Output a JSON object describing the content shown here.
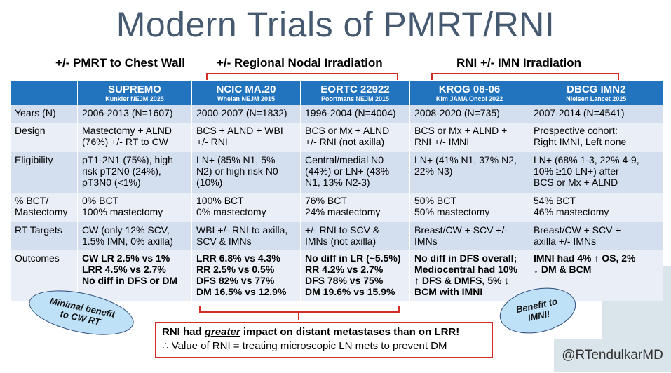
{
  "title": "Modern Trials of PMRT/RNI",
  "groups": {
    "pmrt": "+/- PMRT to Chest Wall",
    "rni": "+/- Regional Nodal Irradiation",
    "imn": "RNI +/- IMN Irradiation"
  },
  "trials": [
    {
      "name": "SUPREMO",
      "source": "Kunkler NEJM 2025"
    },
    {
      "name": "NCIC MA.20",
      "source": "Whelan NEJM 2015"
    },
    {
      "name": "EORTC 22922",
      "source": "Poortmans NEJM 2015"
    },
    {
      "name": "KROG 08-06",
      "source": "Kim JAMA Oncol 2022"
    },
    {
      "name": "DBCG IMN2",
      "source": "Nielsen Lancet 2025"
    }
  ],
  "rows": [
    {
      "label": "Years (N)",
      "cells": [
        [
          "2006-2013 (N=1607)"
        ],
        [
          "2000-2007 (N=1832)"
        ],
        [
          "1996-2004 (N=4004)"
        ],
        [
          "2008-2020 (N=735)"
        ],
        [
          "2007-2014 (N=4541)"
        ]
      ]
    },
    {
      "label": "Design",
      "cells": [
        [
          "Mastectomy + ALND",
          "(76%) +/- RT to CW"
        ],
        [
          "BCS + ALND + WBI",
          "+/- RNI"
        ],
        [
          "BCS or Mx + ALND",
          "+/- RNI (not axilla)"
        ],
        [
          "BCS or Mx + ALND +",
          "RNI +/- IMNI"
        ],
        [
          "Prospective cohort:",
          "Right IMNI, Left none"
        ]
      ]
    },
    {
      "label": "Eligibility",
      "cells": [
        [
          "pT1-2N1 (75%), high",
          "risk pT2N0 (24%),",
          "pT3N0 (<1%)"
        ],
        [
          "LN+ (85% N1, 5%",
          "N2) or high risk N0",
          "(10%)"
        ],
        [
          "Central/medial N0",
          "(44%) or LN+ (43%",
          "N1, 13% N2-3)"
        ],
        [
          "LN+ (41% N1, 37% N2,",
          "22% N3)"
        ],
        [
          "LN+ (68% 1-3, 22% 4-9,",
          "10% ≥10 LN+) after",
          "BCS or Mx + ALND"
        ]
      ]
    },
    {
      "label_lines": [
        "% BCT/",
        "Mastectomy"
      ],
      "cells": [
        [
          "0% BCT",
          "100% mastectomy"
        ],
        [
          "100% BCT",
          "0% mastectomy"
        ],
        [
          "76% BCT",
          "24% mastectomy"
        ],
        [
          "50% BCT",
          "50% mastectomy"
        ],
        [
          "54% BCT",
          "46% mastectomy"
        ]
      ]
    },
    {
      "label": "RT Targets",
      "cells": [
        [
          "CW (only 12% SCV,",
          "1.5% IMN, 0% axilla)"
        ],
        [
          "WBI +/- RNI to axilla,",
          "SCV & IMNs"
        ],
        [
          "+/- RNI to SCV &",
          "IMNs (not axilla)"
        ],
        [
          "Breast/CW + SCV +/-",
          "IMNs"
        ],
        [
          "Breast/CW + SCV +",
          "axilla +/- IMNs"
        ]
      ]
    },
    {
      "label": "Outcomes",
      "cells": [
        [
          "CW LR 2.5% vs 1%",
          "LRR 4.5% vs 2.7%",
          "No diff in DFS or DM"
        ],
        [
          "LRR 6.8% vs 4.3%",
          "RR 2.5% vs 0.5%",
          "DFS 82% vs 77%",
          "DM 16.5% vs 12.9%"
        ],
        [
          "No diff in LR (~5.5%)",
          "RR 4.2% vs 2.7%",
          "DFS 78% vs 75%",
          "DM 19.6% vs 15.9%"
        ],
        [
          "No diff in DFS overall;",
          "Mediocentral had 10%",
          "↑ DFS & DMFS, 5% ↓",
          "BCM with IMNI"
        ],
        [
          "IMNI had 4% ↑ OS, 2%",
          "↓ DM & BCM"
        ]
      ]
    }
  ],
  "ovals": {
    "left": [
      "Minimal benefit",
      "to CW RT"
    ],
    "right": [
      "Benefit to",
      "IMNI!"
    ]
  },
  "summary": {
    "line1_pre": "RNI had ",
    "line1_emph": "greater",
    "line1_post": " impact on distant metastases than on LRR!",
    "line2": "∴ Value of RNI = treating microscopic LN mets to prevent DM"
  },
  "handle": "@RTendulkarMD",
  "colors": {
    "title": "#455a71",
    "header_bg": "#2274bf",
    "row_odd": "#d3deef",
    "row_even": "#eaeff7",
    "accent_red": "#d42b24",
    "oval_fill": "#bfe1f7"
  }
}
